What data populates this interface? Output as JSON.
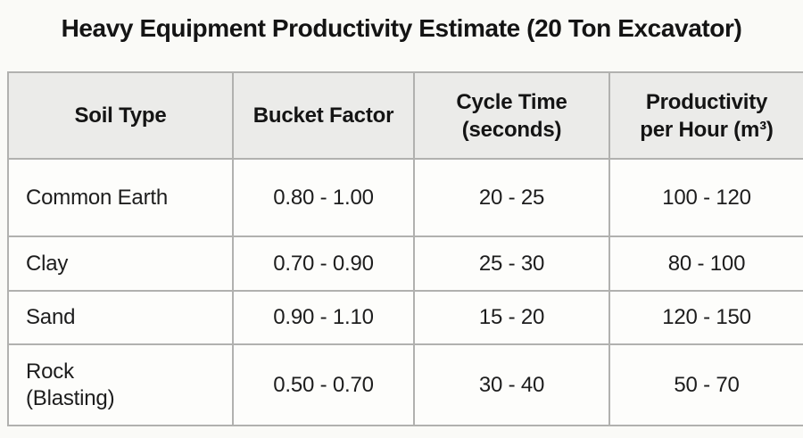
{
  "title": "Heavy Equipment Productivity Estimate (20 Ton Excavator)",
  "chart_data": {
    "type": "table",
    "title": "Heavy Equipment Productivity Estimate (20 Ton Excavator)",
    "columns": [
      "Soil Type",
      "Bucket Factor",
      "Cycle Time (seconds)",
      "Productivity per Hour (m³)"
    ],
    "rows": [
      [
        "Common Earth",
        "0.80 - 1.00",
        "20 - 25",
        "100 - 120"
      ],
      [
        "Clay",
        "0.70 - 0.90",
        "25 - 30",
        "80 - 100"
      ],
      [
        "Sand",
        "0.90 - 1.10",
        "15 - 20",
        "120 - 150"
      ],
      [
        "Rock (Blasting)",
        "0.50 - 0.70",
        "30 - 40",
        "50 - 70"
      ]
    ]
  },
  "display": {
    "header_lines": [
      "Soil Type",
      "Bucket Factor",
      "Cycle Time\n(seconds)",
      "Productivity\nper Hour (m³)"
    ],
    "rock_label": "Rock\n(Blasting)"
  },
  "colors": {
    "page_background": "#fafaf7",
    "header_background": "#ebebe9",
    "cell_background": "#fdfdfb",
    "border": "#b1b1af",
    "text": "#141414"
  }
}
